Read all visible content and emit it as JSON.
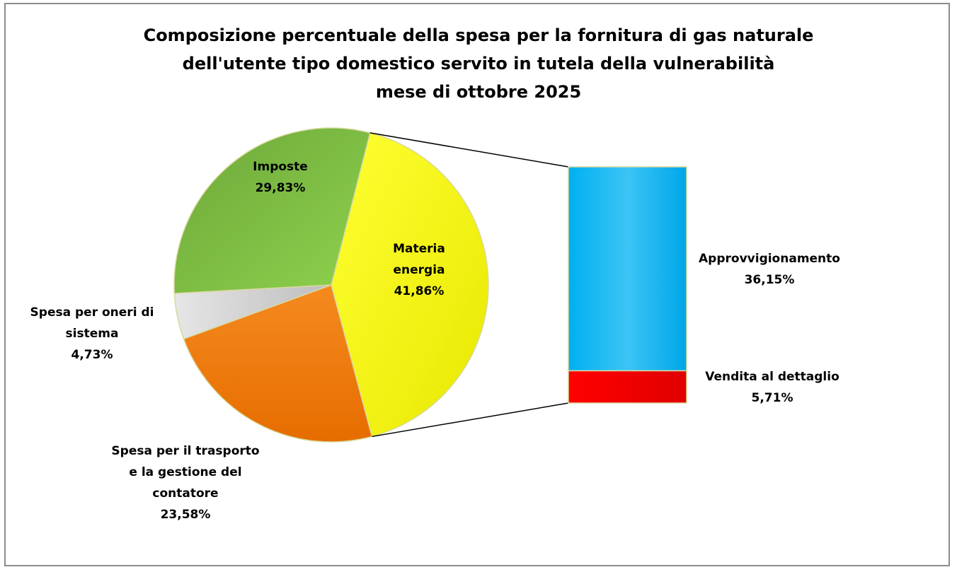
{
  "chart_data": {
    "type": "pie",
    "title": [
      "Composizione percentuale della spesa per la fornitura di gas naturale",
      "dell'utente tipo domestico servito in tutela della vulnerabilità",
      "mese di ottobre 2025"
    ],
    "slices": [
      {
        "label": [
          "Materia",
          "energia"
        ],
        "value_text": "41,86%",
        "value": 41.86,
        "color": "#ffff00"
      },
      {
        "label": [
          "Spesa per il trasporto",
          "e la gestione del",
          "contatore"
        ],
        "value_text": "23,58%",
        "value": 23.58,
        "color": "#f07a10"
      },
      {
        "label": [
          "Spesa per oneri di",
          "sistema"
        ],
        "value_text": "4,73%",
        "value": 4.73,
        "color": "#cfcfcf"
      },
      {
        "label": [
          "Imposte"
        ],
        "value_text": "29,83%",
        "value": 29.83,
        "color": "#7cc242"
      }
    ],
    "breakdown_of": "Materia energia",
    "breakdown": [
      {
        "label": [
          "Approvvigionamento"
        ],
        "value_text": "36,15%",
        "value": 36.15,
        "color": "#1ab2ec"
      },
      {
        "label": [
          "Vendita al dettaglio"
        ],
        "value_text": "5,71%",
        "value": 5.71,
        "color": "#ff0000"
      }
    ]
  }
}
